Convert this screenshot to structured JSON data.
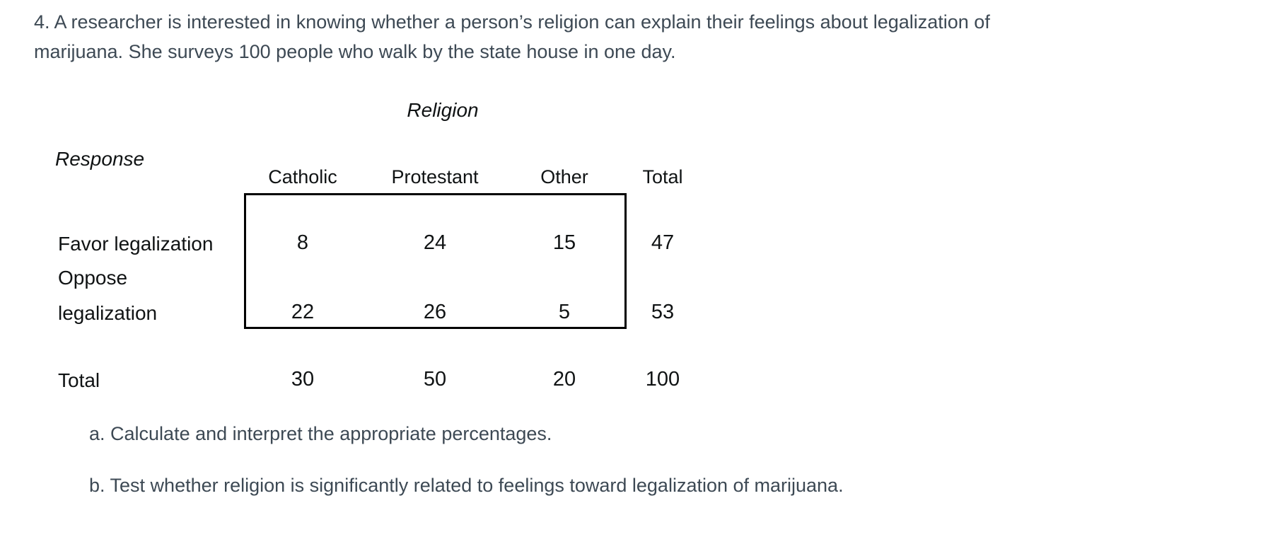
{
  "problem": {
    "line1": "4. A researcher is interested in knowing whether a person’s religion can explain their feelings about legalization of",
    "line2": "marijuana. She surveys 100 people who walk by the state house in one day."
  },
  "table": {
    "group_header": "Religion",
    "row_header": "Response",
    "columns": [
      "Catholic",
      "Protestant",
      "Other",
      "Total"
    ],
    "rows": [
      {
        "label": "Favor legalization",
        "values": [
          "8",
          "24",
          "15",
          "47"
        ]
      },
      {
        "label_lines": [
          "Oppose",
          "legalization"
        ],
        "values": [
          "22",
          "26",
          "5",
          "53"
        ]
      },
      {
        "label": "Total",
        "values": [
          "30",
          "50",
          "20",
          "100"
        ]
      }
    ]
  },
  "questions": [
    {
      "text": "a. Calculate and interpret the appropriate percentages."
    },
    {
      "text": "b. Test whether religion is significantly related to feelings toward legalization of marijuana."
    }
  ],
  "colors": {
    "body_text": "#3d4954",
    "table_text": "#101314",
    "page_bg": "#ffffff",
    "box_border": "#000000"
  }
}
